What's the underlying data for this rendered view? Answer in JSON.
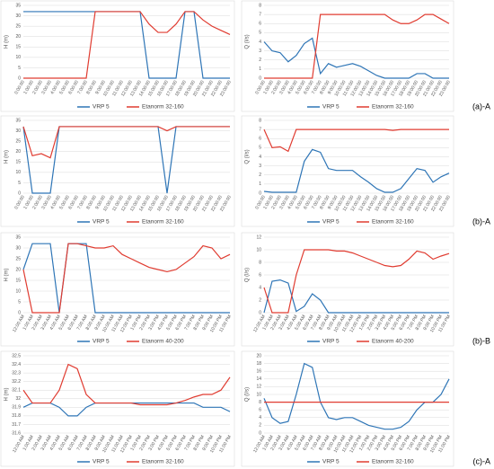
{
  "panel_labels": [
    "(a)-A",
    "(b)-A",
    "(b)-B",
    "(c)-A"
  ],
  "chart_data": [
    {
      "type": "line",
      "y_label": "H (m)",
      "ylim": [
        0,
        35
      ],
      "yticks": [
        0,
        5,
        10,
        15,
        20,
        25,
        30,
        35
      ],
      "grid": true,
      "categories": [
        "0:00:00",
        "1:00:00",
        "2:00:00",
        "3:00:00",
        "4:00:00",
        "5:00:00",
        "6:00:00",
        "7:00:00",
        "8:00:00",
        "9:00:00",
        "10:00:00",
        "11:00:00",
        "12:00:00",
        "13:00:00",
        "14:00:00",
        "15:00:00",
        "16:00:00",
        "17:00:00",
        "18:00:00",
        "19:00:00",
        "20:00:00",
        "21:00:00",
        "22:00:00",
        "23:00:00"
      ],
      "series": [
        {
          "name": "VRP 5",
          "color": "#2e75b6",
          "values": [
            32,
            32,
            32,
            32,
            32,
            32,
            32,
            32,
            32,
            32,
            32,
            32,
            32,
            32,
            0,
            0,
            0,
            0,
            32,
            32,
            0,
            0,
            0,
            0
          ]
        },
        {
          "name": "Etanorm 32-160",
          "color": "#e03c31",
          "values": [
            0,
            0,
            0,
            0,
            0,
            0,
            0,
            0,
            32,
            32,
            32,
            32,
            32,
            32,
            26,
            22,
            22,
            26,
            32,
            32,
            28,
            25,
            23,
            21
          ]
        }
      ]
    },
    {
      "type": "line",
      "y_label": "Q (l/s)",
      "ylim": [
        0,
        8
      ],
      "yticks": [
        0,
        1,
        2,
        3,
        4,
        5,
        6,
        7,
        8
      ],
      "grid": true,
      "categories": [
        "0:00:00",
        "1:00:00",
        "2:00:00",
        "3:00:00",
        "4:00:00",
        "5:00:00",
        "6:00:00",
        "7:00:00",
        "8:00:00",
        "9:00:00",
        "10:00:00",
        "11:00:00",
        "12:00:00",
        "13:00:00",
        "14:00:00",
        "15:00:00",
        "16:00:00",
        "17:00:00",
        "18:00:00",
        "19:00:00",
        "20:00:00",
        "21:00:00",
        "22:00:00",
        "23:00:00"
      ],
      "series": [
        {
          "name": "VRP 5",
          "color": "#2e75b6",
          "values": [
            4,
            3,
            2.8,
            1.8,
            2.5,
            3.8,
            4.4,
            0.5,
            1.6,
            1.2,
            1.4,
            1.6,
            1.3,
            0.8,
            0.3,
            0,
            0,
            0,
            0,
            0.5,
            0.5,
            0,
            0,
            0
          ]
        },
        {
          "name": "Etanorm 32-160",
          "color": "#e03c31",
          "values": [
            0,
            0,
            0,
            0,
            0,
            0,
            0,
            7,
            7,
            7,
            7,
            7,
            7,
            7,
            7,
            7,
            6.4,
            6,
            6,
            6.4,
            7,
            7,
            6.5,
            6
          ]
        }
      ]
    },
    {
      "type": "line",
      "y_label": "H (m)",
      "ylim": [
        0,
        35
      ],
      "yticks": [
        0,
        5,
        10,
        15,
        20,
        25,
        30,
        35
      ],
      "grid": true,
      "categories": [
        "0:00:00",
        "1:00:00",
        "2:00:00",
        "3:00:00",
        "4:00:00",
        "5:00:00",
        "6:00:00",
        "7:00:00",
        "8:00:00",
        "9:00:00",
        "10:00:00",
        "11:00:00",
        "12:00:00",
        "13:00:00",
        "14:00:00",
        "15:00:00",
        "16:00:00",
        "17:00:00",
        "18:00:00",
        "19:00:00",
        "20:00:00",
        "21:00:00",
        "22:00:00",
        "23:00:00"
      ],
      "series": [
        {
          "name": "VRP 5",
          "color": "#2e75b6",
          "values": [
            32,
            0,
            0,
            0,
            32,
            32,
            32,
            32,
            32,
            32,
            32,
            32,
            32,
            32,
            32,
            32,
            0,
            32,
            32,
            32,
            32,
            32,
            32,
            32
          ]
        },
        {
          "name": "Etanorm 32-160",
          "color": "#e03c31",
          "values": [
            32,
            18,
            19,
            17,
            32,
            32,
            32,
            32,
            32,
            32,
            32,
            32,
            32,
            32,
            32,
            32,
            30,
            32,
            32,
            32,
            32,
            32,
            32,
            32
          ]
        }
      ]
    },
    {
      "type": "line",
      "y_label": "Q (l/s)",
      "ylim": [
        0,
        8
      ],
      "yticks": [
        0,
        1,
        2,
        3,
        4,
        5,
        6,
        7,
        8
      ],
      "grid": true,
      "categories": [
        "0:00:00",
        "1:00:00",
        "2:00:00",
        "3:00:00",
        "4:00:00",
        "5:00:00",
        "6:00:00",
        "7:00:00",
        "8:00:00",
        "9:00:00",
        "10:00:00",
        "11:00:00",
        "12:00:00",
        "13:00:00",
        "14:00:00",
        "15:00:00",
        "16:00:00",
        "17:00:00",
        "18:00:00",
        "19:00:00",
        "20:00:00",
        "21:00:00",
        "22:00:00",
        "23:00:00"
      ],
      "series": [
        {
          "name": "VRP 5",
          "color": "#2e75b6",
          "values": [
            0.2,
            0.1,
            0.1,
            0.1,
            0.1,
            3.5,
            4.8,
            4.5,
            2.7,
            2.5,
            2.5,
            2.5,
            1.8,
            1.2,
            0.5,
            0.1,
            0.1,
            0.5,
            1.6,
            2.7,
            2.5,
            1.2,
            1.8,
            2.2
          ]
        },
        {
          "name": "Etanorm 32-160",
          "color": "#e03c31",
          "values": [
            7,
            5,
            5.1,
            4.6,
            7,
            7,
            7,
            7,
            7,
            7,
            7,
            7,
            7,
            7,
            7,
            7,
            6.9,
            7,
            7,
            7,
            7,
            7,
            7,
            7
          ]
        }
      ]
    },
    {
      "type": "line",
      "y_label": "H (m)",
      "ylim": [
        0,
        35
      ],
      "yticks": [
        0,
        5,
        10,
        15,
        20,
        25,
        30,
        35
      ],
      "grid": true,
      "categories": [
        "12:00 AM",
        "1:00 AM",
        "2:00 AM",
        "3:00 AM",
        "4:00 AM",
        "5:00 AM",
        "6:00 AM",
        "7:00 AM",
        "8:00 AM",
        "9:00 AM",
        "10:00 AM",
        "11:00 AM",
        "12:00 PM",
        "1:00 PM",
        "2:00 PM",
        "3:00 PM",
        "4:00 PM",
        "5:00 PM",
        "6:00 PM",
        "7:00 PM",
        "8:00 PM",
        "9:00 PM",
        "10:00 PM",
        "11:00 PM"
      ],
      "series": [
        {
          "name": "VRP 5",
          "color": "#2e75b6",
          "values": [
            20,
            32,
            32,
            32,
            0,
            32,
            32,
            32,
            0,
            0,
            0,
            0,
            0,
            0,
            0,
            0,
            0,
            0,
            0,
            0,
            0,
            0,
            0,
            0
          ]
        },
        {
          "name": "Etanorm 40-200",
          "color": "#e03c31",
          "values": [
            20,
            0,
            0,
            0,
            0,
            32,
            32,
            31,
            30,
            30,
            31,
            27,
            25,
            23,
            21,
            20,
            19,
            20,
            23,
            26,
            31,
            30,
            25,
            27
          ]
        }
      ]
    },
    {
      "type": "line",
      "y_label": "Q (l/s)",
      "ylim": [
        0,
        12
      ],
      "yticks": [
        0,
        2,
        4,
        6,
        8,
        10,
        12
      ],
      "grid": true,
      "categories": [
        "12:00 AM",
        "1:00 AM",
        "2:00 AM",
        "3:00 AM",
        "4:00 AM",
        "5:00 AM",
        "6:00 AM",
        "7:00 AM",
        "8:00 AM",
        "9:00 AM",
        "10:00 AM",
        "11:00 AM",
        "12:00 PM",
        "1:00 PM",
        "2:00 PM",
        "3:00 PM",
        "4:00 PM",
        "5:00 PM",
        "6:00 PM",
        "7:00 PM",
        "8:00 PM",
        "9:00 PM",
        "10:00 PM",
        "11:00 PM"
      ],
      "series": [
        {
          "name": "VRP 5",
          "color": "#2e75b6",
          "values": [
            0,
            5,
            5.2,
            4.7,
            0.2,
            1,
            3,
            2,
            0,
            0,
            0,
            0,
            0,
            0,
            0,
            0,
            0,
            0,
            0,
            0,
            0,
            0,
            0,
            0
          ]
        },
        {
          "name": "Etanorm 40-200",
          "color": "#e03c31",
          "values": [
            4,
            0,
            0,
            0,
            6,
            10,
            10,
            10,
            10,
            9.8,
            9.8,
            9.5,
            9,
            8.5,
            8,
            7.5,
            7.3,
            7.5,
            8.5,
            9.8,
            9.5,
            8.5,
            9,
            9.4
          ]
        }
      ]
    },
    {
      "type": "line",
      "y_label": "H (m)",
      "ylim": [
        31.6,
        32.5
      ],
      "yticks": [
        31.6,
        31.7,
        31.8,
        31.9,
        32,
        32.1,
        32.2,
        32.3,
        32.4,
        32.5
      ],
      "grid": true,
      "categories": [
        "12:00 AM",
        "1:00 AM",
        "2:00 AM",
        "3:00 AM",
        "4:00 AM",
        "5:00 AM",
        "6:00 AM",
        "7:00 AM",
        "8:00 AM",
        "9:00 AM",
        "10:00 AM",
        "11:00 AM",
        "12:00 PM",
        "1:00 PM",
        "2:00 PM",
        "3:00 PM",
        "4:00 PM",
        "5:00 PM",
        "6:00 PM",
        "7:00 PM",
        "8:00 PM",
        "9:00 PM",
        "10:00 PM",
        "11:00 PM"
      ],
      "series": [
        {
          "name": "VRP 5",
          "color": "#2e75b6",
          "values": [
            31.9,
            31.95,
            31.95,
            31.95,
            31.9,
            31.8,
            31.8,
            31.9,
            31.95,
            31.95,
            31.95,
            31.95,
            31.95,
            31.95,
            31.95,
            31.95,
            31.95,
            31.95,
            31.95,
            31.95,
            31.9,
            31.9,
            31.9,
            31.85
          ]
        },
        {
          "name": "Etanorm 32-160",
          "color": "#e03c31",
          "values": [
            32.1,
            31.95,
            31.95,
            31.95,
            32.1,
            32.4,
            32.35,
            32.05,
            31.95,
            31.95,
            31.95,
            31.95,
            31.95,
            31.93,
            31.93,
            31.93,
            31.93,
            31.95,
            31.98,
            32.02,
            32.05,
            32.05,
            32.1,
            32.25
          ]
        }
      ]
    },
    {
      "type": "line",
      "y_label": "Q (l/s)",
      "ylim": [
        0,
        20
      ],
      "yticks": [
        0,
        2,
        4,
        6,
        8,
        10,
        12,
        14,
        16,
        18,
        20
      ],
      "grid": true,
      "categories": [
        "12:00 AM",
        "1:00 AM",
        "2:00 AM",
        "3:00 AM",
        "4:00 AM",
        "5:00 AM",
        "6:00 AM",
        "7:00 AM",
        "8:00 AM",
        "9:00 AM",
        "10:00 AM",
        "11:00 AM",
        "12:00 PM",
        "1:00 PM",
        "2:00 PM",
        "3:00 PM",
        "4:00 PM",
        "5:00 PM",
        "6:00 PM",
        "7:00 PM",
        "8:00 PM",
        "9:00 PM",
        "10:00 PM",
        "11:00 PM"
      ],
      "series": [
        {
          "name": "VRP 5",
          "color": "#2e75b6",
          "values": [
            9,
            4,
            2.5,
            3,
            10,
            18,
            17,
            8,
            4,
            3.5,
            4,
            4,
            3,
            2,
            1.5,
            1,
            1,
            1.5,
            3,
            6,
            8,
            8,
            10,
            14
          ]
        },
        {
          "name": "Etanorm 32-160",
          "color": "#e03c31",
          "values": [
            8,
            8,
            8,
            8,
            8,
            8,
            8,
            8,
            8,
            8,
            8,
            8,
            8,
            8,
            8,
            8,
            8,
            8,
            8,
            8,
            8,
            8,
            8,
            8
          ]
        }
      ]
    }
  ]
}
